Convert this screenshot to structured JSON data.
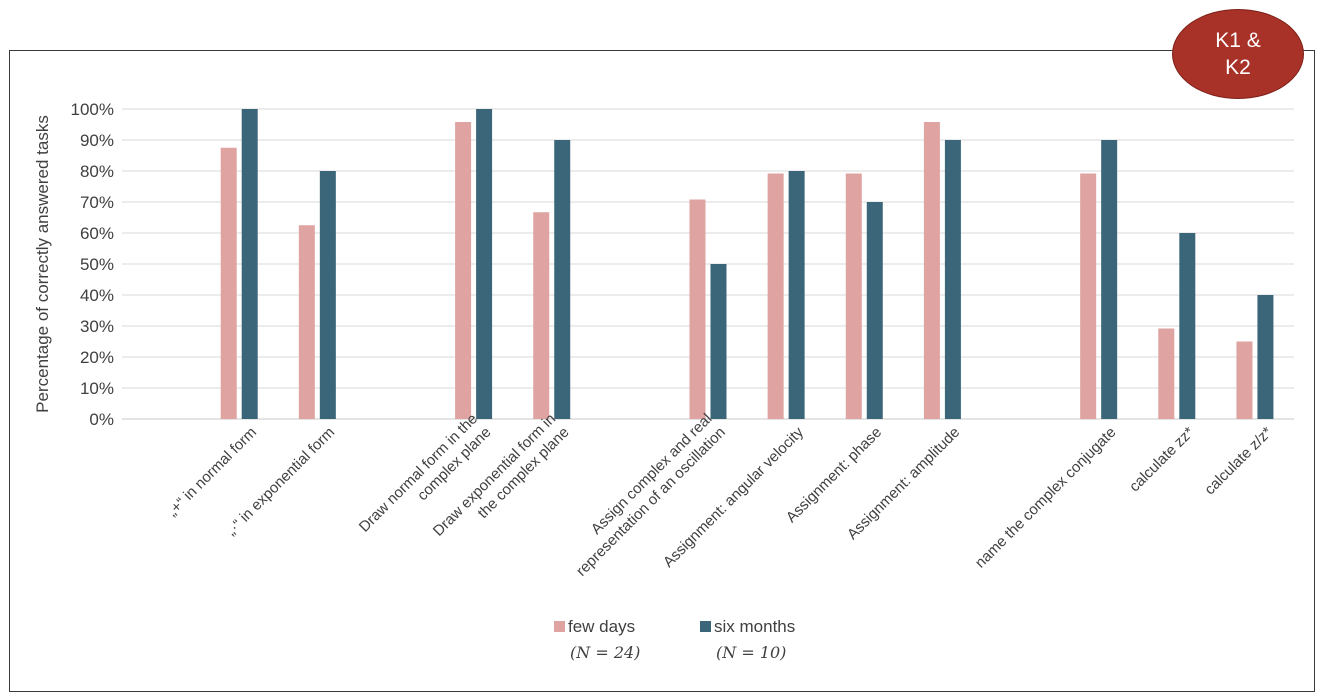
{
  "badge": {
    "label": "K1 &\nK2",
    "color": "#a83228"
  },
  "chart_data": {
    "type": "bar",
    "ylabel": "Percentage of correctly answered tasks",
    "xlabel": "",
    "ylim": [
      0,
      100
    ],
    "yticks": [
      "0%",
      "10%",
      "20%",
      "30%",
      "40%",
      "50%",
      "60%",
      "70%",
      "80%",
      "90%",
      "100%"
    ],
    "grid": true,
    "legend_position": "bottom-center",
    "categories": [
      "",
      "„+“ in normal form",
      "„·“ in exponential form",
      "",
      "Draw normal form in the\ncomplex plane",
      "Draw exponential form in\nthe complex plane",
      "",
      "Assign complex and real\nrepresentation of an oscillation",
      "Assignment: angular velocity",
      "Assignment: phase",
      "Assignment: amplitude",
      "",
      "name the complex conjugate",
      "calculate zz*",
      "calculate z/z*"
    ],
    "series": [
      {
        "name": "few days",
        "sub": "(N = 24)",
        "color": "#dfa3a1",
        "values": [
          null,
          87.5,
          62.5,
          null,
          95.8,
          66.7,
          null,
          70.8,
          79.2,
          79.2,
          95.8,
          null,
          79.2,
          29.2,
          25.0
        ]
      },
      {
        "name": "six months",
        "sub": "(N = 10)",
        "color": "#3b6679",
        "values": [
          null,
          100,
          80,
          null,
          100,
          90,
          null,
          50,
          80,
          70,
          90,
          null,
          90,
          60,
          40
        ]
      }
    ]
  }
}
